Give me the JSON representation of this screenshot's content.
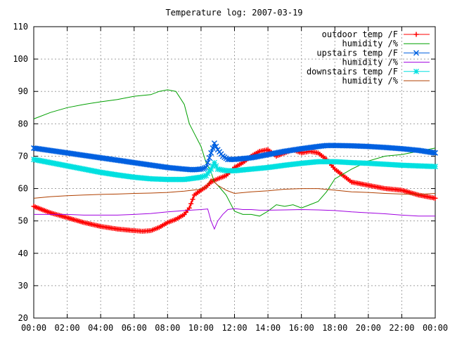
{
  "chart_data": {
    "type": "line",
    "title": "Temperature log: 2007-03-19",
    "xlabel": "",
    "ylabel": "",
    "ylim": [
      20,
      110
    ],
    "xlim": [
      0,
      24
    ],
    "grid": true,
    "legend_position": "top-right",
    "y_ticks": [
      "20",
      "30",
      "40",
      "50",
      "60",
      "70",
      "80",
      "90",
      "100",
      "110"
    ],
    "x_ticks": [
      "00:00",
      "02:00",
      "04:00",
      "06:00",
      "08:00",
      "10:00",
      "12:00",
      "14:00",
      "16:00",
      "18:00",
      "20:00",
      "22:00",
      "00:00"
    ],
    "series": [
      {
        "name": "outdoor temp /F",
        "color": "#ff0000",
        "marker": "plus",
        "x": [
          0,
          1,
          2,
          3,
          4,
          5,
          6,
          6.5,
          7,
          7.5,
          8,
          8.5,
          9,
          9.3,
          9.6,
          10,
          10.3,
          10.6,
          11,
          11.5,
          12,
          12.5,
          13,
          13.5,
          14,
          14.5,
          15,
          15.5,
          16,
          16.5,
          17,
          17.5,
          18,
          18.5,
          19,
          20,
          21,
          22,
          23,
          24
        ],
        "y": [
          54.5,
          52.5,
          51,
          49.5,
          48.3,
          47.5,
          47,
          46.8,
          47,
          48,
          49.5,
          50.5,
          52,
          54,
          58,
          59.5,
          60.5,
          62,
          63,
          64,
          66.5,
          68,
          70,
          71.5,
          72,
          70,
          71,
          72,
          71,
          71.5,
          71,
          69,
          66,
          64,
          62,
          61,
          60,
          59.5,
          58,
          57
        ]
      },
      {
        "name": "humidity /%",
        "color": "#00a000",
        "marker": "none",
        "x": [
          0,
          1,
          2,
          3,
          4,
          5,
          6,
          7,
          7.5,
          8,
          8.5,
          9,
          9.3,
          9.6,
          10,
          10.3,
          10.6,
          10.8,
          11,
          11.5,
          12,
          12.5,
          13,
          13.5,
          14,
          14.5,
          15,
          15.5,
          16,
          16.5,
          17,
          17.5,
          18,
          19,
          20,
          21,
          22,
          23,
          24
        ],
        "y": [
          81.5,
          83.5,
          85,
          86,
          86.8,
          87.5,
          88.5,
          89,
          90,
          90.5,
          90,
          86,
          80,
          77,
          73,
          68,
          65,
          62,
          61,
          58,
          53,
          52,
          52,
          51.5,
          53,
          55,
          54.5,
          55,
          54,
          55,
          56,
          59,
          63,
          66,
          68.5,
          70,
          70.5,
          71.5,
          72.5
        ]
      },
      {
        "name": "upstairs temp /F",
        "color": "#0060e0",
        "marker": "x",
        "x": [
          0,
          2,
          4,
          6,
          8,
          9,
          9.5,
          10,
          10.3,
          10.6,
          10.8,
          11,
          11.3,
          11.6,
          12,
          13,
          14,
          15,
          16,
          17,
          17.5,
          18,
          19,
          20,
          21,
          22,
          23,
          24
        ],
        "y": [
          72.5,
          71,
          69.5,
          68,
          66.5,
          66,
          65.8,
          66,
          66.5,
          71,
          74,
          72,
          70,
          69,
          69,
          69.5,
          70.5,
          71.5,
          72.3,
          73,
          73.3,
          73.3,
          73.2,
          73,
          72.7,
          72.3,
          71.8,
          71
        ]
      },
      {
        "name": "humidity /%",
        "color": "#a000e0",
        "marker": "none",
        "x": [
          0,
          1,
          2,
          3,
          4,
          5,
          6,
          7,
          8,
          9,
          10,
          10.4,
          10.6,
          10.8,
          11,
          11.3,
          11.6,
          12,
          12.5,
          13,
          13.5,
          14,
          15,
          16,
          17,
          18,
          19,
          20,
          21,
          22,
          23,
          24
        ],
        "y": [
          52,
          52,
          52,
          51.8,
          51.8,
          51.8,
          52,
          52.3,
          52.8,
          53.2,
          53.5,
          53.7,
          50,
          47.5,
          50,
          52,
          53.5,
          53.8,
          53.5,
          53.5,
          53.3,
          53.3,
          53.4,
          53.5,
          53.4,
          53.2,
          52.8,
          52.5,
          52.2,
          51.8,
          51.5,
          51.5
        ]
      },
      {
        "name": "downstairs temp /F",
        "color": "#00e0e0",
        "marker": "star",
        "x": [
          0,
          1,
          2,
          3,
          4,
          5,
          6,
          7,
          8,
          9,
          10,
          10.3,
          10.6,
          10.8,
          11,
          11.5,
          12,
          13,
          14,
          15,
          16,
          17,
          18,
          19,
          20,
          21,
          22,
          23,
          24
        ],
        "y": [
          69,
          68,
          67,
          66,
          65,
          64.2,
          63.5,
          63,
          62.8,
          62.8,
          63.5,
          64,
          66,
          68,
          66,
          65.5,
          65.5,
          66,
          66.5,
          67.2,
          67.8,
          68.3,
          68.3,
          68,
          67.8,
          67.5,
          67.2,
          67,
          66.8
        ]
      },
      {
        "name": "humidity /%",
        "color": "#b04000",
        "marker": "none",
        "x": [
          0,
          1,
          2,
          3,
          4,
          5,
          6,
          7,
          8,
          9,
          10,
          10.3,
          10.6,
          10.8,
          11,
          11.5,
          12,
          13,
          14,
          15,
          16,
          17,
          18,
          19,
          20,
          21,
          22,
          23,
          24
        ],
        "y": [
          57,
          57.5,
          57.8,
          58,
          58.2,
          58.3,
          58.5,
          58.6,
          58.8,
          59.2,
          59.8,
          60.5,
          63,
          62,
          61,
          59.5,
          58.5,
          59,
          59.3,
          59.8,
          60,
          60,
          59.5,
          59,
          58.8,
          58.5,
          58.3,
          58.2,
          58.5
        ]
      }
    ]
  }
}
